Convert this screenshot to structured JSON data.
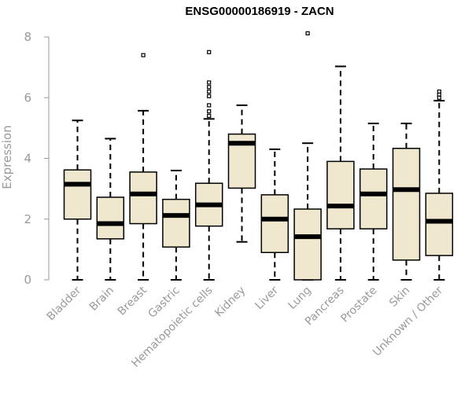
{
  "chart_data": {
    "type": "box",
    "title": "ENSG00000186919 - ZACN",
    "xlabel": "",
    "ylabel": "Expression",
    "ylim": [
      0,
      8
    ],
    "yticks": [
      0,
      2,
      4,
      6,
      8
    ],
    "grid": false,
    "box_fill": "#efe8cf",
    "categories": [
      "Bladder",
      "Brain",
      "Breast",
      "Gastric",
      "Hematopoietic cells",
      "Kidney",
      "Liver",
      "Lung",
      "Pancreas",
      "Prostate",
      "Skin",
      "Unknown / Other"
    ],
    "boxes": [
      {
        "whislo": 0.0,
        "q1": 2.0,
        "med": 3.15,
        "q3": 3.62,
        "whishi": 5.25,
        "fliers": []
      },
      {
        "whislo": 0.0,
        "q1": 1.35,
        "med": 1.85,
        "q3": 2.72,
        "whishi": 4.65,
        "fliers": []
      },
      {
        "whislo": 0.0,
        "q1": 1.85,
        "med": 2.83,
        "q3": 3.55,
        "whishi": 5.57,
        "fliers": [
          7.4
        ]
      },
      {
        "whislo": 0.0,
        "q1": 1.08,
        "med": 2.12,
        "q3": 2.65,
        "whishi": 3.6,
        "fliers": []
      },
      {
        "whislo": 0.0,
        "q1": 1.77,
        "med": 2.47,
        "q3": 3.18,
        "whishi": 5.3,
        "fliers": [
          7.5,
          6.5,
          6.35,
          6.2,
          6.05,
          5.75,
          5.55,
          5.4
        ]
      },
      {
        "whislo": 1.25,
        "q1": 3.02,
        "med": 4.5,
        "q3": 4.8,
        "whishi": 5.75,
        "fliers": []
      },
      {
        "whislo": 0.0,
        "q1": 0.9,
        "med": 2.0,
        "q3": 2.8,
        "whishi": 4.3,
        "fliers": []
      },
      {
        "whislo": 0.0,
        "q1": 0.0,
        "med": 1.42,
        "q3": 2.33,
        "whishi": 4.5,
        "fliers": [
          8.12
        ]
      },
      {
        "whislo": 0.0,
        "q1": 1.68,
        "med": 2.43,
        "q3": 3.9,
        "whishi": 7.03,
        "fliers": []
      },
      {
        "whislo": 0.0,
        "q1": 1.68,
        "med": 2.83,
        "q3": 3.65,
        "whishi": 5.15,
        "fliers": []
      },
      {
        "whislo": 0.0,
        "q1": 0.65,
        "med": 2.97,
        "q3": 4.33,
        "whishi": 5.15,
        "fliers": []
      },
      {
        "whislo": 0.0,
        "q1": 0.8,
        "med": 1.93,
        "q3": 2.85,
        "whishi": 5.9,
        "fliers": [
          6.2,
          6.1,
          6.0
        ]
      }
    ]
  }
}
